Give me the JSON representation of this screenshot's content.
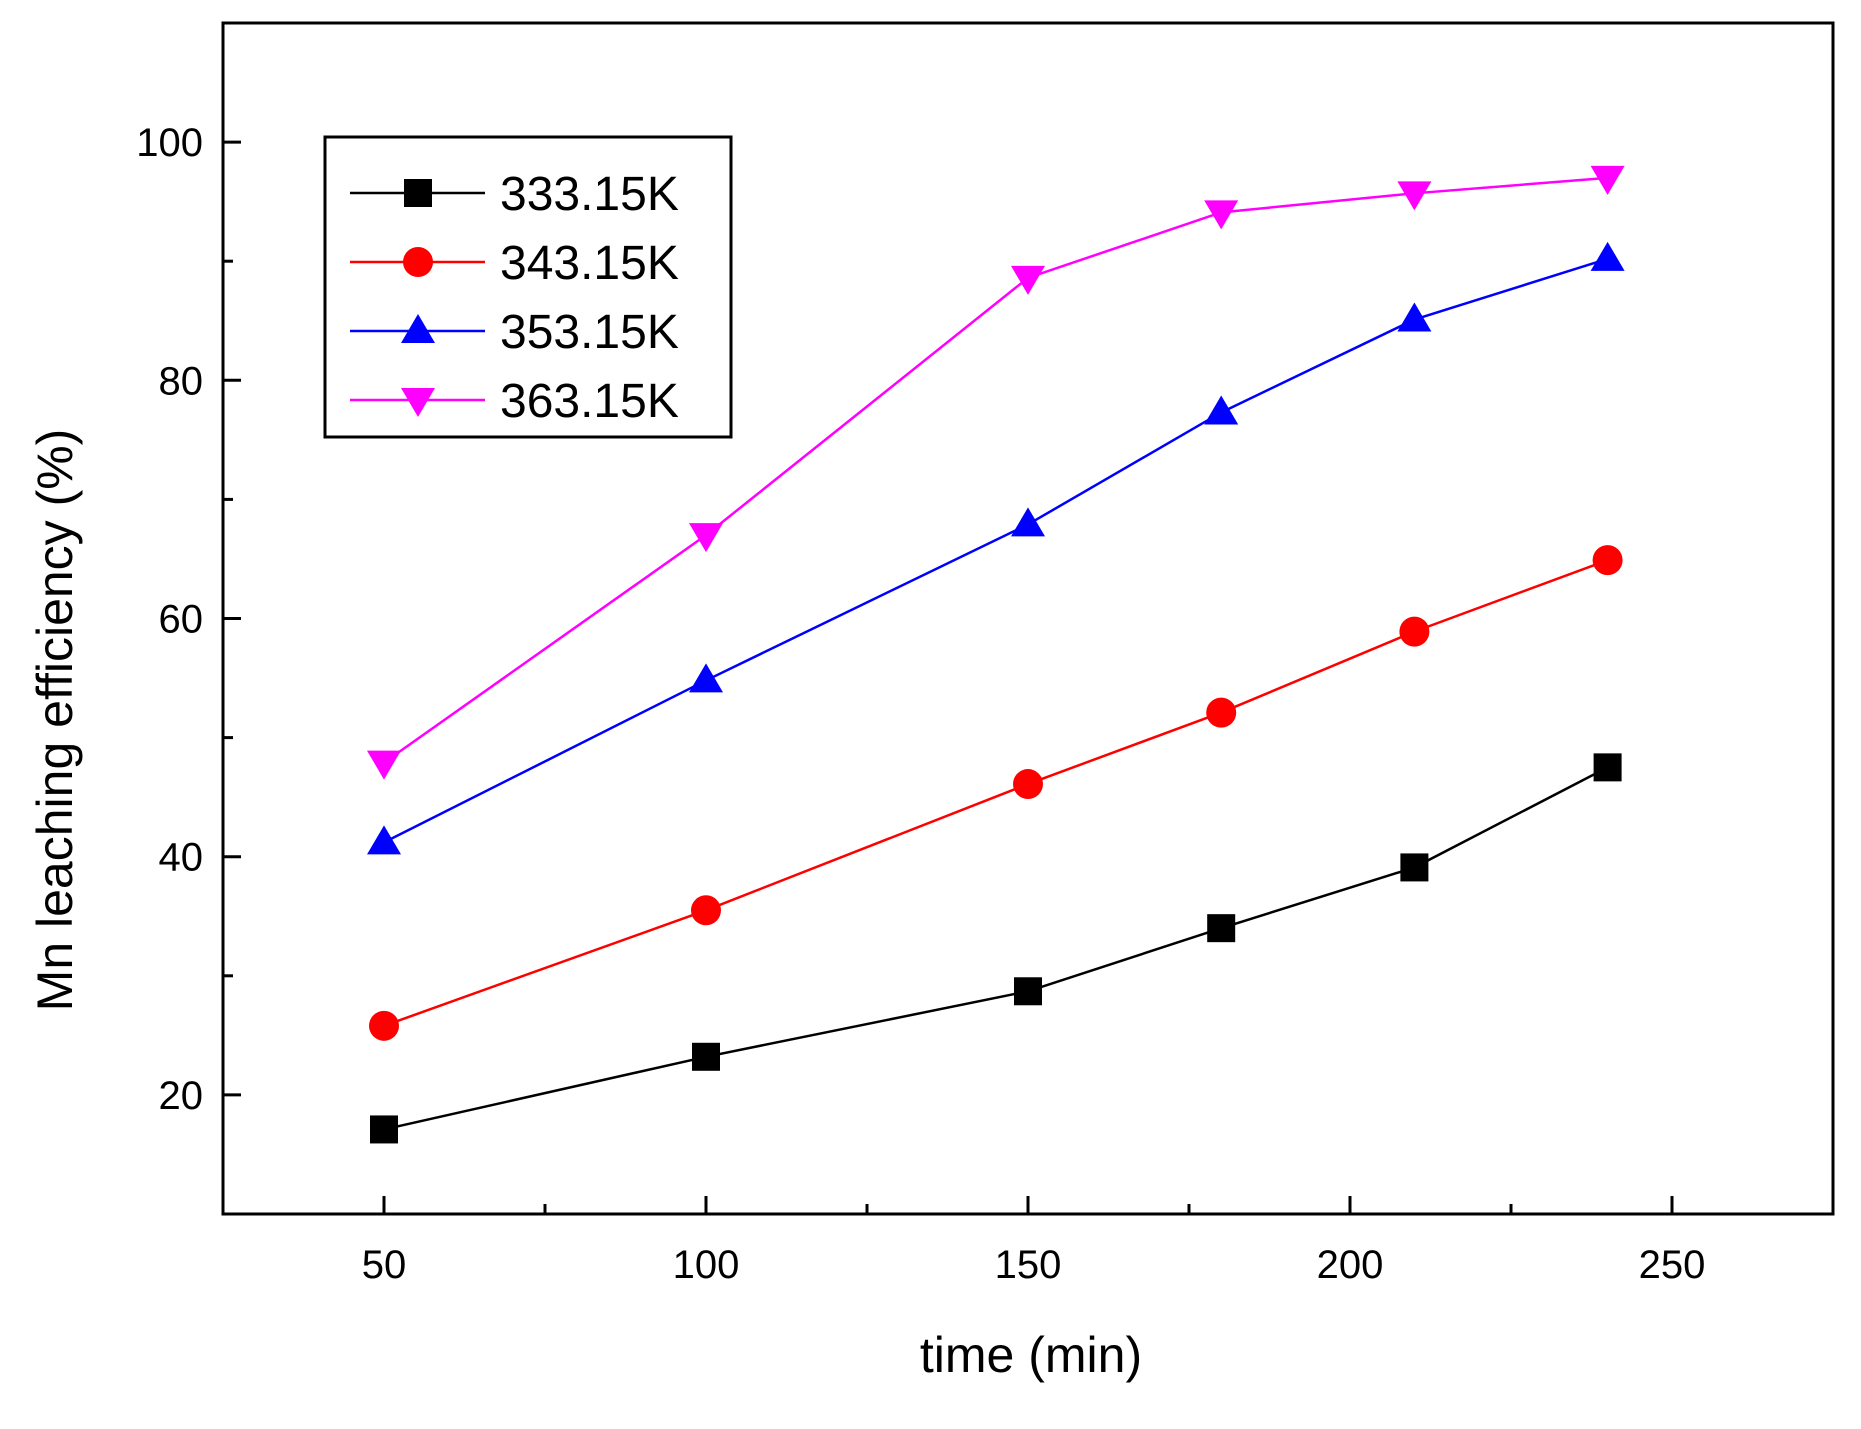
{
  "chart_data": {
    "type": "line",
    "title": "",
    "xlabel": "time (min)",
    "ylabel": "Mn leaching efficiency (%)",
    "xlim": [
      25,
      275
    ],
    "ylim": [
      10,
      110
    ],
    "xticks": [
      50,
      100,
      150,
      200,
      250
    ],
    "xtick_labels": [
      "50",
      "100",
      "150",
      "200",
      "250"
    ],
    "yticks": [
      20,
      40,
      60,
      80,
      100
    ],
    "ytick_labels": [
      "20",
      "40",
      "60",
      "80",
      "100"
    ],
    "grid": false,
    "legend_position": "top-left",
    "series": [
      {
        "name": "333.15K",
        "color": "#000000",
        "marker": "square",
        "x": [
          50,
          100,
          150,
          180,
          210,
          240
        ],
        "y": [
          17.1,
          23.2,
          28.7,
          34.0,
          39.1,
          47.5
        ]
      },
      {
        "name": "343.15K",
        "color": "#ff0000",
        "marker": "circle",
        "x": [
          50,
          100,
          150,
          180,
          210,
          240
        ],
        "y": [
          25.8,
          35.5,
          46.1,
          52.1,
          58.9,
          64.9
        ]
      },
      {
        "name": "353.15K",
        "color": "#0000ff",
        "marker": "triangle-up",
        "x": [
          50,
          100,
          150,
          180,
          210,
          240
        ],
        "y": [
          41.2,
          54.8,
          67.9,
          77.3,
          85.1,
          90.2
        ]
      },
      {
        "name": "363.15K",
        "color": "#ff00ff",
        "marker": "triangle-down",
        "x": [
          50,
          100,
          150,
          180,
          210,
          240
        ],
        "y": [
          47.9,
          67.0,
          88.6,
          94.1,
          95.7,
          97.0
        ]
      }
    ]
  }
}
